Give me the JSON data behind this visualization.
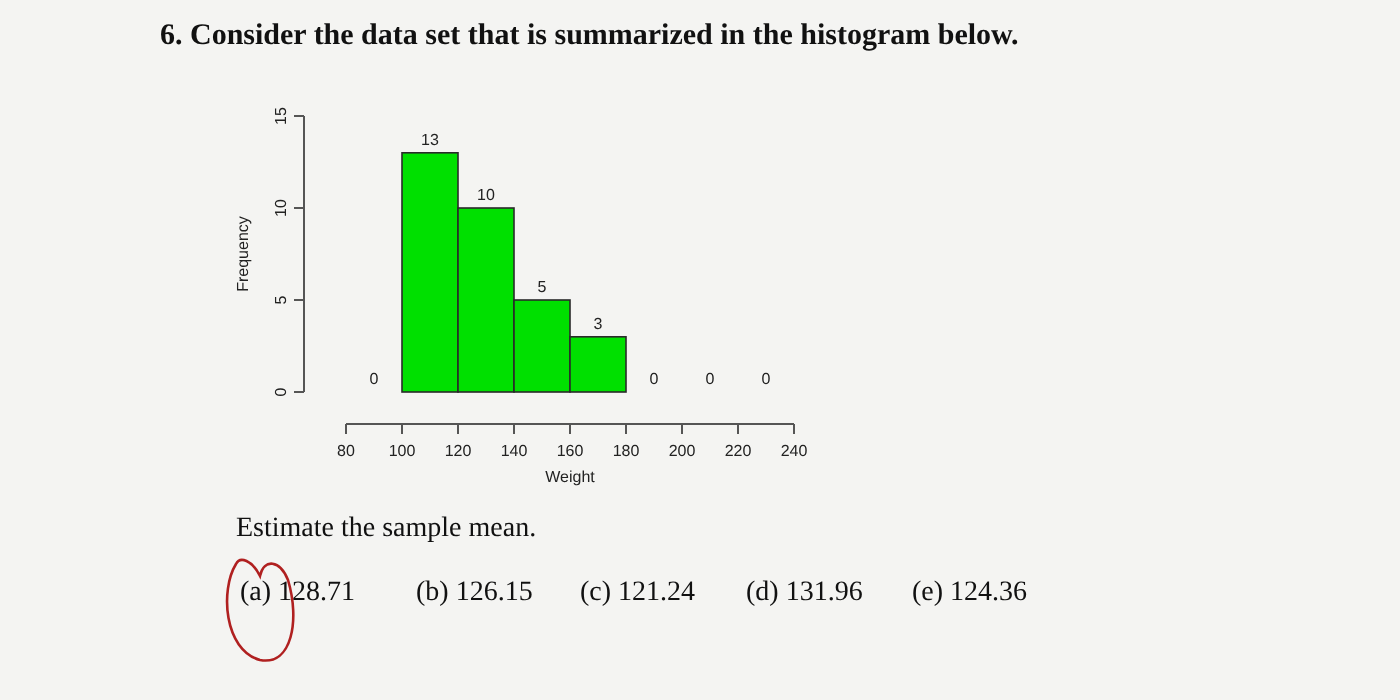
{
  "chart_data": {
    "type": "histogram",
    "title": "6. Consider the data set that is summarized in the histogram below.",
    "xlabel": "Weight",
    "ylabel": "Frequency",
    "bins": [
      80,
      100,
      120,
      140,
      160,
      180,
      200,
      220,
      240
    ],
    "values": [
      0,
      13,
      10,
      5,
      3,
      0,
      0,
      0
    ],
    "color": "#00e000",
    "xlim": [
      80,
      240
    ],
    "xticks": [
      80,
      100,
      120,
      140,
      160,
      180,
      200,
      220,
      240
    ],
    "ylim": [
      0,
      15
    ],
    "yticks": [
      0,
      5,
      10,
      15
    ],
    "data_labels": true,
    "grid": false,
    "annotations": [
      "Estimate the sample mean.",
      "(a) 128.71",
      "(b) 126.15",
      "(c) 121.24",
      "(d) 131.96",
      "(e) 124.36"
    ]
  }
}
